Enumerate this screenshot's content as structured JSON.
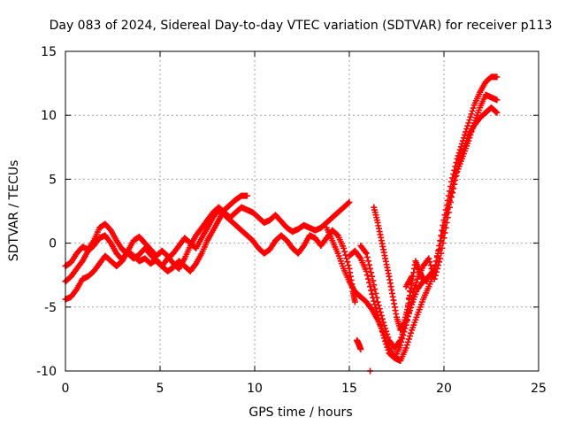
{
  "chart_data": {
    "type": "scatter",
    "title": "Day 083 of 2024, Sidereal Day-to-day VTEC variation (SDTVAR) for receiver p113",
    "xlabel": "GPS time / hours",
    "ylabel": "SDTVAR / TECUs",
    "xlim": [
      0,
      25
    ],
    "ylim": [
      -10,
      15
    ],
    "xticks": [
      0,
      5,
      10,
      15,
      20,
      25
    ],
    "yticks": [
      -10,
      -5,
      0,
      5,
      10,
      15
    ],
    "grid": true,
    "marker": "+",
    "color": "#ff0000",
    "series": [
      {
        "points": [
          [
            0.0,
            -1.8
          ],
          [
            0.3,
            -1.5
          ],
          [
            0.6,
            -0.8
          ],
          [
            0.9,
            -0.3
          ],
          [
            1.2,
            -0.5
          ],
          [
            1.5,
            0.2
          ],
          [
            1.8,
            1.2
          ],
          [
            2.1,
            1.5
          ],
          [
            2.4,
            1.0
          ],
          [
            2.7,
            0.2
          ],
          [
            3.0,
            -0.5
          ],
          [
            3.3,
            -0.8
          ],
          [
            3.6,
            -1.2
          ],
          [
            3.9,
            -0.9
          ],
          [
            4.2,
            -0.4
          ],
          [
            4.5,
            -0.9
          ],
          [
            4.8,
            -1.4
          ],
          [
            5.1,
            -1.8
          ],
          [
            5.4,
            -2.2
          ],
          [
            5.7,
            -1.9
          ],
          [
            6.0,
            -1.4
          ],
          [
            6.3,
            -1.8
          ],
          [
            6.6,
            -2.2
          ],
          [
            6.9,
            -1.6
          ],
          [
            7.2,
            -0.8
          ],
          [
            7.5,
            0.2
          ],
          [
            7.8,
            1.0
          ],
          [
            8.1,
            1.8
          ],
          [
            8.4,
            2.6
          ],
          [
            8.7,
            3.0
          ],
          [
            9.0,
            3.4
          ],
          [
            9.3,
            3.7
          ],
          [
            9.6,
            3.7
          ]
        ]
      },
      {
        "points": [
          [
            0.0,
            -3.0
          ],
          [
            0.3,
            -2.6
          ],
          [
            0.6,
            -2.0
          ],
          [
            0.9,
            -1.4
          ],
          [
            1.2,
            -0.6
          ],
          [
            1.5,
            -0.2
          ],
          [
            1.8,
            0.4
          ],
          [
            2.1,
            0.6
          ],
          [
            2.4,
            0.0
          ],
          [
            2.7,
            -0.8
          ],
          [
            3.0,
            -1.3
          ],
          [
            3.3,
            -0.6
          ],
          [
            3.6,
            0.2
          ],
          [
            3.9,
            0.5
          ],
          [
            4.2,
            0.0
          ],
          [
            4.5,
            -0.5
          ],
          [
            4.8,
            -1.0
          ],
          [
            5.1,
            -0.6
          ],
          [
            5.4,
            -1.0
          ],
          [
            5.7,
            -1.6
          ],
          [
            6.0,
            -2.0
          ],
          [
            6.3,
            -1.2
          ],
          [
            6.6,
            -0.2
          ],
          [
            6.9,
            0.6
          ],
          [
            7.2,
            1.2
          ],
          [
            7.5,
            1.8
          ],
          [
            7.8,
            2.4
          ],
          [
            8.1,
            2.8
          ],
          [
            8.4,
            2.4
          ],
          [
            8.7,
            2.0
          ],
          [
            9.0,
            2.4
          ],
          [
            9.3,
            2.8
          ],
          [
            9.6,
            2.6
          ],
          [
            9.9,
            2.4
          ],
          [
            10.2,
            2.0
          ],
          [
            10.5,
            1.6
          ],
          [
            10.8,
            1.8
          ],
          [
            11.1,
            2.2
          ],
          [
            11.4,
            1.7
          ],
          [
            11.7,
            1.2
          ],
          [
            12.0,
            0.9
          ],
          [
            12.3,
            1.1
          ],
          [
            12.6,
            1.4
          ],
          [
            12.9,
            1.2
          ],
          [
            13.2,
            1.0
          ],
          [
            13.5,
            1.2
          ],
          [
            13.8,
            1.6
          ],
          [
            14.1,
            2.0
          ],
          [
            14.4,
            2.4
          ],
          [
            14.7,
            2.8
          ],
          [
            15.0,
            3.2
          ]
        ]
      },
      {
        "points": [
          [
            0.0,
            -4.4
          ],
          [
            0.3,
            -4.2
          ],
          [
            0.6,
            -3.6
          ],
          [
            0.9,
            -2.8
          ],
          [
            1.2,
            -2.6
          ],
          [
            1.5,
            -2.2
          ],
          [
            1.8,
            -1.6
          ],
          [
            2.1,
            -1.0
          ],
          [
            2.4,
            -1.4
          ],
          [
            2.7,
            -1.8
          ],
          [
            3.0,
            -1.4
          ],
          [
            3.3,
            -0.6
          ],
          [
            3.6,
            -1.0
          ],
          [
            3.9,
            -1.4
          ],
          [
            4.2,
            -1.2
          ],
          [
            4.5,
            -1.6
          ],
          [
            4.8,
            -1.3
          ],
          [
            5.1,
            -1.8
          ],
          [
            5.4,
            -1.2
          ],
          [
            5.7,
            -0.8
          ],
          [
            6.0,
            -0.2
          ],
          [
            6.3,
            0.4
          ],
          [
            6.6,
            0.0
          ],
          [
            6.9,
            -0.4
          ],
          [
            7.2,
            0.4
          ],
          [
            7.5,
            1.2
          ],
          [
            7.8,
            2.0
          ],
          [
            8.1,
            2.6
          ],
          [
            8.4,
            2.2
          ],
          [
            8.7,
            1.8
          ],
          [
            9.0,
            1.4
          ],
          [
            9.3,
            1.0
          ],
          [
            9.6,
            0.6
          ],
          [
            9.9,
            0.2
          ],
          [
            10.2,
            -0.4
          ],
          [
            10.5,
            -0.8
          ],
          [
            10.8,
            -0.5
          ],
          [
            11.1,
            0.2
          ],
          [
            11.4,
            0.6
          ],
          [
            11.7,
            0.2
          ],
          [
            12.0,
            -0.4
          ],
          [
            12.3,
            -0.8
          ],
          [
            12.6,
            -0.2
          ],
          [
            12.9,
            0.6
          ],
          [
            13.2,
            0.4
          ],
          [
            13.5,
            -0.2
          ],
          [
            13.8,
            0.4
          ],
          [
            14.1,
            1.0
          ],
          [
            14.4,
            0.6
          ],
          [
            14.7,
            -0.4
          ],
          [
            15.0,
            -2.0
          ],
          [
            15.2,
            -3.8
          ],
          [
            15.3,
            -4.6
          ]
        ]
      },
      {
        "points": [
          [
            13.8,
            1.2
          ],
          [
            14.1,
            0.2
          ],
          [
            14.4,
            -0.8
          ],
          [
            14.7,
            -2.0
          ],
          [
            15.0,
            -3.0
          ],
          [
            15.3,
            -3.8
          ],
          [
            15.6,
            -4.2
          ],
          [
            15.9,
            -4.6
          ],
          [
            16.2,
            -5.2
          ],
          [
            16.5,
            -6.0
          ],
          [
            16.8,
            -7.0
          ],
          [
            17.1,
            -8.2
          ],
          [
            17.4,
            -9.0
          ],
          [
            17.7,
            -9.2
          ],
          [
            18.0,
            -8.2
          ],
          [
            18.3,
            -6.8
          ],
          [
            18.6,
            -5.6
          ],
          [
            18.9,
            -4.4
          ],
          [
            19.2,
            -3.4
          ],
          [
            19.5,
            -2.2
          ],
          [
            19.8,
            0.2
          ],
          [
            20.1,
            2.6
          ],
          [
            20.4,
            4.8
          ],
          [
            20.7,
            6.6
          ],
          [
            21.0,
            8.0
          ],
          [
            21.3,
            9.4
          ],
          [
            21.6,
            10.8
          ],
          [
            21.9,
            11.8
          ],
          [
            22.2,
            12.6
          ],
          [
            22.5,
            13.0
          ],
          [
            22.8,
            13.0
          ]
        ]
      },
      {
        "points": [
          [
            15.0,
            -1.0
          ],
          [
            15.3,
            -0.6
          ],
          [
            15.6,
            -1.2
          ],
          [
            15.9,
            -2.2
          ],
          [
            16.2,
            -4.0
          ],
          [
            16.5,
            -5.6
          ],
          [
            16.8,
            -7.2
          ],
          [
            17.1,
            -8.6
          ],
          [
            17.4,
            -9.0
          ],
          [
            17.7,
            -8.0
          ],
          [
            18.0,
            -6.4
          ],
          [
            18.3,
            -4.4
          ],
          [
            18.6,
            -2.8
          ],
          [
            18.9,
            -1.8
          ],
          [
            19.2,
            -1.2
          ],
          [
            19.5,
            -2.8
          ],
          [
            19.8,
            -1.2
          ],
          [
            20.1,
            1.2
          ],
          [
            20.4,
            3.6
          ],
          [
            20.7,
            5.6
          ],
          [
            21.0,
            6.8
          ],
          [
            21.3,
            8.0
          ],
          [
            21.6,
            9.4
          ],
          [
            21.9,
            10.6
          ],
          [
            22.2,
            11.6
          ],
          [
            22.5,
            11.4
          ],
          [
            22.8,
            11.2
          ]
        ]
      },
      {
        "points": [
          [
            15.6,
            -0.2
          ],
          [
            15.9,
            -0.8
          ],
          [
            16.2,
            -2.6
          ],
          [
            16.5,
            -4.6
          ],
          [
            16.8,
            -6.2
          ],
          [
            17.1,
            -7.6
          ],
          [
            17.4,
            -8.2
          ],
          [
            17.7,
            -7.6
          ],
          [
            18.0,
            -6.2
          ],
          [
            18.3,
            -4.8
          ],
          [
            18.6,
            -3.6
          ],
          [
            18.9,
            -3.0
          ],
          [
            19.2,
            -2.6
          ],
          [
            19.5,
            -2.0
          ],
          [
            19.8,
            -0.2
          ],
          [
            20.1,
            2.0
          ],
          [
            20.4,
            4.0
          ],
          [
            20.7,
            5.8
          ],
          [
            21.0,
            7.2
          ],
          [
            21.3,
            8.4
          ],
          [
            21.6,
            9.2
          ],
          [
            21.9,
            9.8
          ],
          [
            22.2,
            10.2
          ],
          [
            22.5,
            10.6
          ],
          [
            22.8,
            10.2
          ]
        ]
      },
      {
        "points": [
          [
            16.3,
            2.8
          ],
          [
            16.5,
            1.6
          ],
          [
            16.7,
            0.2
          ],
          [
            16.9,
            -1.2
          ],
          [
            17.1,
            -2.6
          ],
          [
            17.3,
            -4.2
          ],
          [
            17.5,
            -5.8
          ],
          [
            17.7,
            -6.8
          ],
          [
            17.9,
            -6.2
          ],
          [
            18.1,
            -5.0
          ],
          [
            18.3,
            -3.2
          ],
          [
            18.5,
            -1.4
          ],
          [
            18.7,
            -2.2
          ],
          [
            18.9,
            -2.8
          ],
          [
            19.1,
            -3.0
          ]
        ]
      },
      {
        "points": [
          [
            15.4,
            -7.6
          ],
          [
            15.5,
            -7.9
          ],
          [
            15.6,
            -8.3
          ],
          [
            16.1,
            -10.0
          ],
          [
            18.0,
            -3.4
          ],
          [
            18.3,
            -2.6
          ],
          [
            18.0,
            -6.0
          ]
        ]
      }
    ]
  }
}
